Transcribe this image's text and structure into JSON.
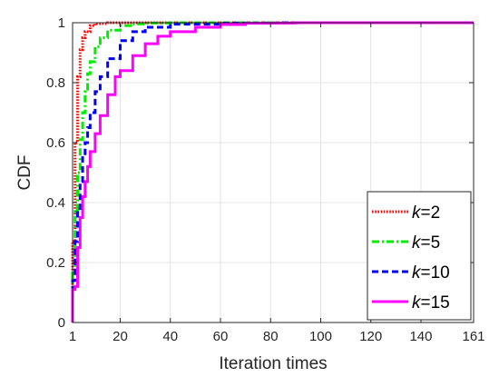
{
  "chart_data": {
    "type": "line",
    "xlabel": "Iteration times",
    "ylabel": "CDF",
    "xlim": [
      1,
      161
    ],
    "ylim": [
      0,
      1
    ],
    "xticks": [
      1,
      20,
      40,
      60,
      80,
      100,
      120,
      140,
      161
    ],
    "yticks": [
      0,
      0.2,
      0.4,
      0.6,
      0.8,
      1
    ],
    "grid": true,
    "legend_position": "bottom-right",
    "step": true,
    "series": [
      {
        "name": "k=2",
        "legend_var": "k",
        "legend_value": "=2",
        "color": "#ff0000",
        "line_style": "dotted",
        "points": [
          [
            1,
            0.27
          ],
          [
            2,
            0.6
          ],
          [
            3,
            0.82
          ],
          [
            4,
            0.91
          ],
          [
            5,
            0.95
          ],
          [
            6,
            0.97
          ],
          [
            8,
            0.99
          ],
          [
            10,
            0.997
          ],
          [
            15,
            1.0
          ],
          [
            161,
            1.0
          ]
        ]
      },
      {
        "name": "k=5",
        "legend_var": "k",
        "legend_value": "=5",
        "color": "#00ee00",
        "line_style": "dashdot",
        "points": [
          [
            1,
            0.17
          ],
          [
            2,
            0.37
          ],
          [
            3,
            0.5
          ],
          [
            4,
            0.61
          ],
          [
            5,
            0.7
          ],
          [
            6,
            0.77
          ],
          [
            7,
            0.83
          ],
          [
            8,
            0.87
          ],
          [
            10,
            0.92
          ],
          [
            12,
            0.95
          ],
          [
            15,
            0.975
          ],
          [
            20,
            0.99
          ],
          [
            25,
            0.996
          ],
          [
            30,
            0.999
          ],
          [
            40,
            1.0
          ],
          [
            161,
            1.0
          ]
        ]
      },
      {
        "name": "k=10",
        "legend_var": "k",
        "legend_value": "=10",
        "color": "#0000ff",
        "line_style": "dashed",
        "points": [
          [
            1,
            0.14
          ],
          [
            2,
            0.27
          ],
          [
            3,
            0.38
          ],
          [
            4,
            0.47
          ],
          [
            5,
            0.55
          ],
          [
            6,
            0.6
          ],
          [
            7,
            0.65
          ],
          [
            8,
            0.7
          ],
          [
            10,
            0.77
          ],
          [
            12,
            0.82
          ],
          [
            15,
            0.88
          ],
          [
            20,
            0.94
          ],
          [
            25,
            0.97
          ],
          [
            30,
            0.985
          ],
          [
            40,
            0.995
          ],
          [
            60,
            0.999
          ],
          [
            85,
            1.0
          ],
          [
            161,
            1.0
          ]
        ]
      },
      {
        "name": "k=15",
        "legend_var": "k",
        "legend_value": "=15",
        "color": "#ff00ff",
        "line_style": "solid",
        "points": [
          [
            1,
            0.11
          ],
          [
            2,
            0.12
          ],
          [
            3,
            0.25
          ],
          [
            4,
            0.35
          ],
          [
            5,
            0.42
          ],
          [
            6,
            0.47
          ],
          [
            7,
            0.52
          ],
          [
            8,
            0.57
          ],
          [
            10,
            0.63
          ],
          [
            12,
            0.69
          ],
          [
            15,
            0.76
          ],
          [
            18,
            0.82
          ],
          [
            20,
            0.84
          ],
          [
            25,
            0.89
          ],
          [
            30,
            0.93
          ],
          [
            35,
            0.955
          ],
          [
            40,
            0.97
          ],
          [
            50,
            0.985
          ],
          [
            60,
            0.994
          ],
          [
            70,
            0.998
          ],
          [
            80,
            0.999
          ],
          [
            90,
            1.0
          ],
          [
            161,
            1.0
          ]
        ]
      }
    ]
  }
}
